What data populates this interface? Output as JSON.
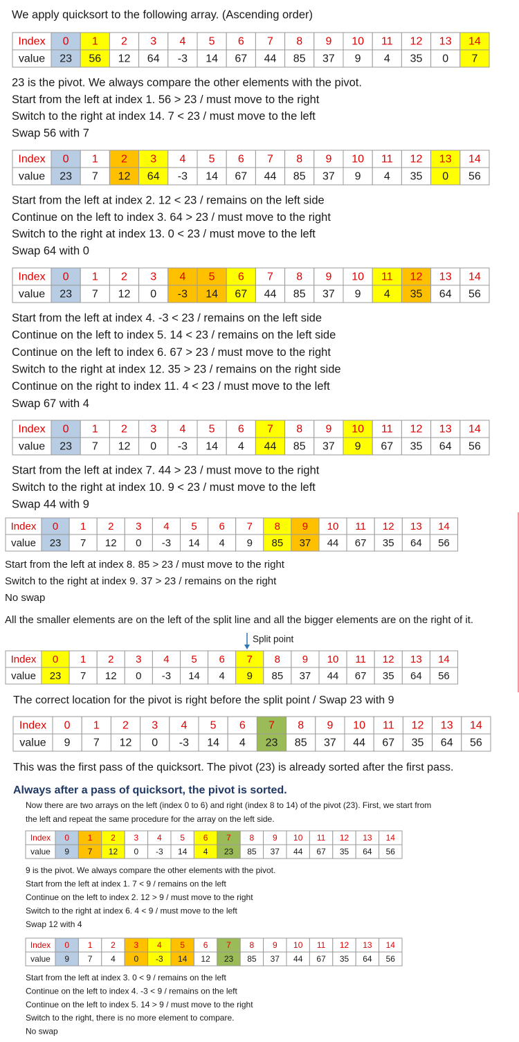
{
  "blocks": [
    {
      "lines": [
        "We apply quicksort to the following array. (Ascending order)"
      ]
    },
    {
      "table": {
        "labels": [
          "Index",
          "value"
        ],
        "index": [
          0,
          1,
          2,
          3,
          4,
          5,
          6,
          7,
          8,
          9,
          10,
          11,
          12,
          13,
          14
        ],
        "values": [
          23,
          56,
          12,
          64,
          -3,
          14,
          67,
          44,
          85,
          37,
          9,
          4,
          35,
          0,
          7
        ],
        "colors": [
          "#b8cce4",
          "#ffff00",
          null,
          null,
          null,
          null,
          null,
          null,
          null,
          null,
          null,
          null,
          null,
          null,
          "#ffff00"
        ]
      }
    },
    {
      "lines": [
        "23 is the pivot. We always compare the other elements with the pivot.",
        "Start from the left at index 1. 56 > 23 / must move to the right",
        "Switch to the right at index 14. 7 < 23 / must move to the left",
        "Swap 56 with 7"
      ]
    },
    {
      "table": {
        "labels": [
          "Index",
          "value"
        ],
        "index": [
          0,
          1,
          2,
          3,
          4,
          5,
          6,
          7,
          8,
          9,
          10,
          11,
          12,
          13,
          14
        ],
        "values": [
          23,
          7,
          12,
          64,
          -3,
          14,
          67,
          44,
          85,
          37,
          9,
          4,
          35,
          0,
          56
        ],
        "colors": [
          "#b8cce4",
          null,
          "#ffc000",
          "#ffff00",
          null,
          null,
          null,
          null,
          null,
          null,
          null,
          null,
          null,
          "#ffff00",
          null
        ]
      }
    },
    {
      "lines": [
        "Start from the left at index 2. 12 < 23 / remains on the left side",
        "Continue on the left to index 3. 64 > 23 / must move to the right",
        "Switch to the right at index 13. 0 < 23 / must move to the left",
        "Swap 64 with 0"
      ]
    },
    {
      "table": {
        "labels": [
          "Index",
          "value"
        ],
        "index": [
          0,
          1,
          2,
          3,
          4,
          5,
          6,
          7,
          8,
          9,
          10,
          11,
          12,
          13,
          14
        ],
        "values": [
          23,
          7,
          12,
          0,
          -3,
          14,
          67,
          44,
          85,
          37,
          9,
          4,
          35,
          64,
          56
        ],
        "colors": [
          "#b8cce4",
          null,
          null,
          null,
          "#ffc000",
          "#ffc000",
          "#ffff00",
          null,
          null,
          null,
          null,
          "#ffff00",
          "#ffc000",
          null,
          null
        ]
      }
    },
    {
      "lines": [
        "Start from the left at index 4. -3 < 23 / remains on the left side",
        "Continue on the left to index 5. 14 < 23 / remains on the left side",
        "Continue on the left to index 6. 67 > 23 / must move to the right",
        "Switch to the right at index 12. 35 > 23 / remains on the right side",
        "Continue on the right to index 11. 4 < 23 / must move to the left",
        "Swap 67 with 4"
      ]
    },
    {
      "table": {
        "labels": [
          "Index",
          "value"
        ],
        "index": [
          0,
          1,
          2,
          3,
          4,
          5,
          6,
          7,
          8,
          9,
          10,
          11,
          12,
          13,
          14
        ],
        "values": [
          23,
          7,
          12,
          0,
          -3,
          14,
          4,
          44,
          85,
          37,
          9,
          67,
          35,
          64,
          56
        ],
        "colors": [
          "#b8cce4",
          null,
          null,
          null,
          null,
          null,
          null,
          "#ffff00",
          null,
          null,
          "#ffff00",
          null,
          null,
          null,
          null
        ]
      }
    },
    {
      "lines": [
        "Start from the left at index 7. 44 > 23 / must move to the right",
        "Switch to the right at index 10. 9 < 23 / must move to the left",
        "Swap 44 with 9"
      ]
    },
    {
      "table": {
        "labels": [
          "Index",
          "value"
        ],
        "index": [
          0,
          1,
          2,
          3,
          4,
          5,
          6,
          7,
          8,
          9,
          10,
          11,
          12,
          13,
          14
        ],
        "values": [
          23,
          7,
          12,
          0,
          -3,
          14,
          4,
          9,
          85,
          37,
          44,
          67,
          35,
          64,
          56
        ],
        "colors": [
          "#b8cce4",
          null,
          null,
          null,
          null,
          null,
          null,
          null,
          "#ffff00",
          "#ffc000",
          null,
          null,
          null,
          null,
          null
        ]
      }
    },
    {
      "lines": [
        "Start from the left at index 8. 85 > 23 / must move to the right",
        "Switch to the right at index 9. 37 > 23 / remains on the right",
        "No swap",
        "All the smaller elements are on the left of the split line and all the bigger elements are on the right of it."
      ]
    },
    {
      "lines": [
        "Split point"
      ]
    },
    {
      "table": {
        "labels": [
          "Index",
          "value"
        ],
        "index": [
          0,
          1,
          2,
          3,
          4,
          5,
          6,
          7,
          8,
          9,
          10,
          11,
          12,
          13,
          14
        ],
        "values": [
          23,
          7,
          12,
          0,
          -3,
          14,
          4,
          9,
          85,
          37,
          44,
          67,
          35,
          64,
          56
        ],
        "colors": [
          "#ffff00",
          null,
          null,
          null,
          null,
          null,
          null,
          "#ffff00",
          null,
          null,
          null,
          null,
          null,
          null,
          null
        ]
      }
    },
    {
      "lines": [
        "The correct location for the pivot is right before the split point / Swap 23 with 9"
      ]
    },
    {
      "table": {
        "labels": [
          "Index",
          "value"
        ],
        "index": [
          0,
          1,
          2,
          3,
          4,
          5,
          6,
          7,
          8,
          9,
          10,
          11,
          12,
          13,
          14
        ],
        "values": [
          9,
          7,
          12,
          0,
          -3,
          14,
          4,
          23,
          85,
          37,
          44,
          67,
          35,
          64,
          56
        ],
        "colors": [
          null,
          null,
          null,
          null,
          null,
          null,
          null,
          "#9bbb59",
          null,
          null,
          null,
          null,
          null,
          null,
          null
        ]
      }
    },
    {
      "lines": [
        "This was the first pass of the quicksort. The pivot (23) is already sorted after the first pass."
      ]
    },
    {
      "lines": [
        "Always after a pass of quicksort, the pivot is sorted."
      ]
    },
    {
      "lines": [
        "Now there are two arrays on the left (index 0 to 6) and right (index 8 to 14) of the pivot (23). First, we start from",
        "the left and repeat the same procedure for the array on the left side."
      ]
    },
    {
      "table": {
        "labels": [
          "Index",
          "value"
        ],
        "index": [
          0,
          1,
          2,
          3,
          4,
          5,
          6,
          7,
          8,
          9,
          10,
          11,
          12,
          13,
          14
        ],
        "values": [
          9,
          7,
          12,
          0,
          -3,
          14,
          4,
          23,
          85,
          37,
          44,
          67,
          35,
          64,
          56
        ],
        "colors": [
          "#b8cce4",
          "#ffc000",
          "#ffff00",
          null,
          null,
          null,
          "#ffff00",
          "#9bbb59",
          null,
          null,
          null,
          null,
          null,
          null,
          null
        ]
      }
    },
    {
      "lines": [
        "9 is the pivot. We always compare the other elements with the pivot.",
        "Start from the left at index 1. 7 < 9 / remains on the left",
        "Continue on the left to index 2. 12 > 9 / must move to the right",
        "Switch to the right at index 6. 4 < 9 / must move to the left",
        "Swap 12 with 4"
      ]
    },
    {
      "table": {
        "labels": [
          "Index",
          "value"
        ],
        "index": [
          0,
          1,
          2,
          3,
          4,
          5,
          6,
          7,
          8,
          9,
          10,
          11,
          12,
          13,
          14
        ],
        "values": [
          9,
          7,
          4,
          0,
          -3,
          14,
          12,
          23,
          85,
          37,
          44,
          67,
          35,
          64,
          56
        ],
        "colors": [
          "#b8cce4",
          null,
          null,
          "#ffc000",
          "#ffff00",
          "#ffc000",
          null,
          "#9bbb59",
          null,
          null,
          null,
          null,
          null,
          null,
          null
        ]
      }
    },
    {
      "lines": [
        "Start from the left at index 3. 0 < 9 / remains on the left",
        "Continue on the left to index 4. -3 < 9 / remains on the left",
        "Continue on the left to index 5. 14 > 9 / must move to the right",
        "Switch to the right, there is no more element to compare.",
        "No swap"
      ]
    }
  ]
}
